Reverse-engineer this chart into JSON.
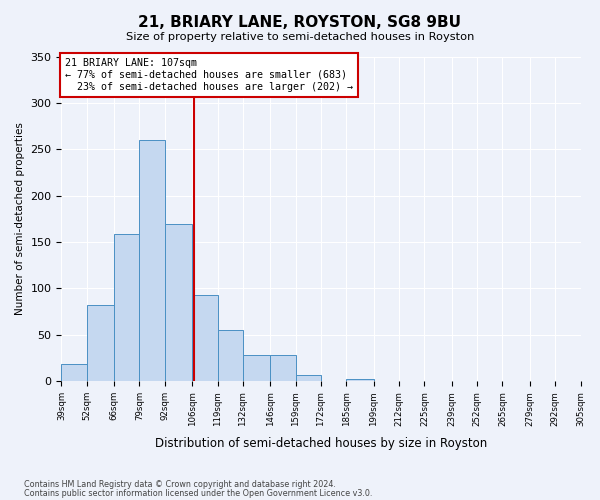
{
  "title": "21, BRIARY LANE, ROYSTON, SG8 9BU",
  "subtitle": "Size of property relative to semi-detached houses in Royston",
  "xlabel": "Distribution of semi-detached houses by size in Royston",
  "ylabel": "Number of semi-detached properties",
  "bin_labels": [
    "39sqm",
    "52sqm",
    "66sqm",
    "79sqm",
    "92sqm",
    "106sqm",
    "119sqm",
    "132sqm",
    "146sqm",
    "159sqm",
    "172sqm",
    "185sqm",
    "199sqm",
    "212sqm",
    "225sqm",
    "239sqm",
    "252sqm",
    "265sqm",
    "279sqm",
    "292sqm",
    "305sqm"
  ],
  "bar_values": [
    19,
    82,
    159,
    260,
    170,
    93,
    55,
    28,
    28,
    7,
    0,
    2,
    0,
    0,
    0,
    0,
    0,
    0,
    0,
    0
  ],
  "bin_edges": [
    39,
    52,
    66,
    79,
    92,
    106,
    119,
    132,
    146,
    159,
    172,
    185,
    199,
    212,
    225,
    239,
    252,
    265,
    279,
    292,
    305
  ],
  "property_size": 107,
  "pct_smaller": 77,
  "pct_larger": 23,
  "count_smaller": 683,
  "count_larger": 202,
  "bar_color": "#c5d8f0",
  "bar_edge_color": "#4a90c4",
  "vline_color": "#cc0000",
  "annotation_box_color": "#cc0000",
  "background_color": "#eef2fa",
  "grid_color": "#ffffff",
  "ylim": [
    0,
    350
  ],
  "footer_line1": "Contains HM Land Registry data © Crown copyright and database right 2024.",
  "footer_line2": "Contains public sector information licensed under the Open Government Licence v3.0."
}
